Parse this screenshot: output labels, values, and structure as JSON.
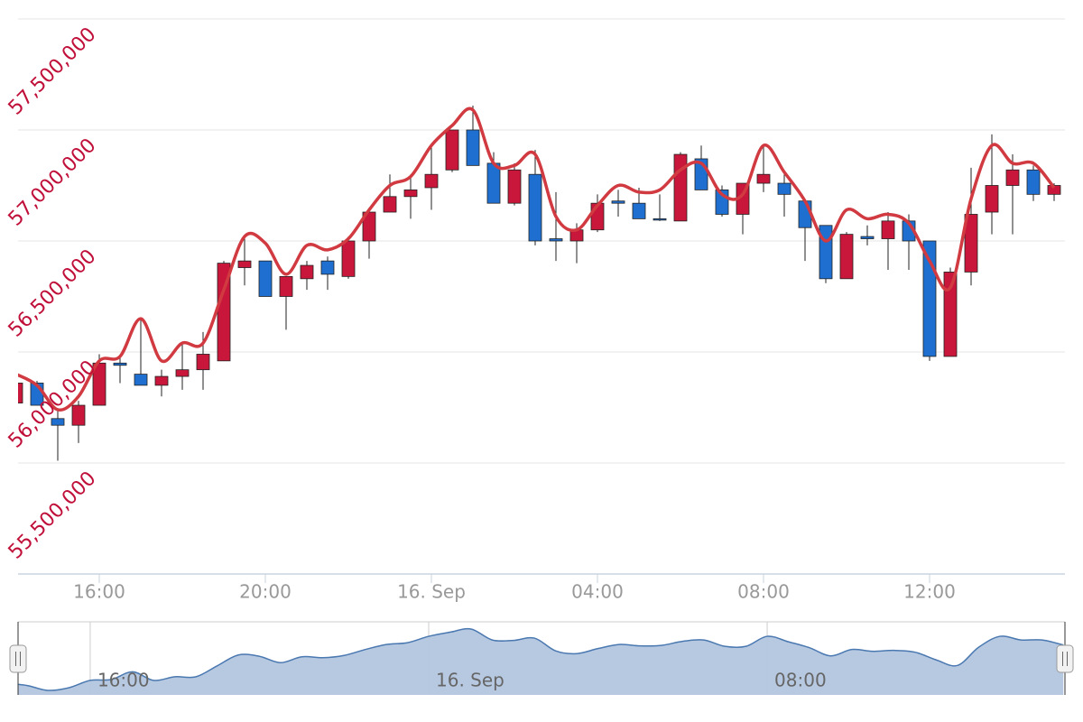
{
  "chart_data": {
    "type": "candlestick",
    "categories": [
      null,
      null,
      null,
      null,
      "16:00",
      null,
      null,
      null,
      null,
      null,
      null,
      null,
      "20:00",
      null,
      null,
      null,
      null,
      null,
      null,
      null,
      "16. Sep",
      null,
      null,
      null,
      null,
      null,
      null,
      null,
      "04:00",
      null,
      null,
      null,
      null,
      null,
      null,
      null,
      "08:00",
      null,
      null,
      null,
      null,
      null,
      null,
      null,
      "12:00",
      null,
      null,
      null,
      null,
      null,
      null
    ],
    "open": [
      55770000,
      55860000,
      55700000,
      55670000,
      55760000,
      55950000,
      55900000,
      55850000,
      55890000,
      55920000,
      55960000,
      56380000,
      56410000,
      56250000,
      56330000,
      56410000,
      56340000,
      56500000,
      56630000,
      56700000,
      56740000,
      56820000,
      57000000,
      56850000,
      56670000,
      56800000,
      56510000,
      56500000,
      56550000,
      56680000,
      56670000,
      56600000,
      56590000,
      56870000,
      56730000,
      56620000,
      56760000,
      56760000,
      56680000,
      56570000,
      56330000,
      56520000,
      56510000,
      56590000,
      56500000,
      55980000,
      56360000,
      56630000,
      56750000,
      56820000,
      56710000
    ],
    "high": [
      55880000,
      55870000,
      55740000,
      55780000,
      55990000,
      55980000,
      56150000,
      55920000,
      56040000,
      56090000,
      56410000,
      56520000,
      56410000,
      56340000,
      56410000,
      56430000,
      56520000,
      56650000,
      56800000,
      56800000,
      56930000,
      57000000,
      57110000,
      56900000,
      56850000,
      56910000,
      56720000,
      56580000,
      56710000,
      56730000,
      56740000,
      56710000,
      56900000,
      56930000,
      56750000,
      56760000,
      56930000,
      56800000,
      56680000,
      56570000,
      56540000,
      56570000,
      56630000,
      56620000,
      56500000,
      56380000,
      56830000,
      56980000,
      56890000,
      56840000,
      56760000
    ],
    "low": [
      55760000,
      55760000,
      55510000,
      55590000,
      55760000,
      55860000,
      55850000,
      55800000,
      55830000,
      55830000,
      55960000,
      56300000,
      56250000,
      56100000,
      56280000,
      56280000,
      56330000,
      56420000,
      56630000,
      56600000,
      56640000,
      56810000,
      56840000,
      56670000,
      56660000,
      56480000,
      56410000,
      56400000,
      56540000,
      56610000,
      56600000,
      56590000,
      56590000,
      56730000,
      56610000,
      56530000,
      56720000,
      56610000,
      56410000,
      56310000,
      56330000,
      56480000,
      56370000,
      56370000,
      55960000,
      55980000,
      56300000,
      56530000,
      56530000,
      56680000,
      56680000
    ],
    "close": [
      55860000,
      55760000,
      55670000,
      55760000,
      55950000,
      55940000,
      55850000,
      55890000,
      55920000,
      55990000,
      56400000,
      56410000,
      56250000,
      56340000,
      56390000,
      56350000,
      56500000,
      56630000,
      56700000,
      56730000,
      56800000,
      57000000,
      56840000,
      56670000,
      56820000,
      56500000,
      56500000,
      56550000,
      56670000,
      56670000,
      56600000,
      56600000,
      56890000,
      56730000,
      56620000,
      56760000,
      56800000,
      56710000,
      56560000,
      56330000,
      56530000,
      56510000,
      56590000,
      56500000,
      55980000,
      56360000,
      56620000,
      56750000,
      56820000,
      56710000,
      56750000
    ],
    "up_color": "#c8173a",
    "down_color": "#1f6fd0",
    "overlay": {
      "type": "spline",
      "color": "#d03a40",
      "values": [
        55900000,
        55850000,
        55740000,
        55800000,
        55960000,
        55980000,
        56150000,
        55960000,
        56040000,
        56040000,
        56280000,
        56520000,
        56490000,
        56350000,
        56480000,
        56460000,
        56510000,
        56640000,
        56750000,
        56790000,
        56930000,
        57020000,
        57090000,
        56850000,
        56840000,
        56890000,
        56610000,
        56550000,
        56660000,
        56750000,
        56720000,
        56730000,
        56820000,
        56850000,
        56710000,
        56710000,
        56930000,
        56810000,
        56680000,
        56500000,
        56640000,
        56600000,
        56620000,
        56580000,
        56410000,
        56290000,
        56690000,
        56930000,
        56850000,
        56850000,
        56740000
      ]
    },
    "ylim": [
      55000000,
      57500000
    ],
    "yticks": [
      {
        "value": 55500000,
        "label": "55,500,000"
      },
      {
        "value": 56000000,
        "label": "56,000,000"
      },
      {
        "value": 56500000,
        "label": "56,500,000"
      },
      {
        "value": 57000000,
        "label": "57,000,000"
      },
      {
        "value": 57500000,
        "label": "57,500,000"
      }
    ],
    "grid": true,
    "navigator": {
      "labels": [
        "16:00",
        "16. Sep",
        "08:00"
      ],
      "fill": "#b3c6df",
      "line": "#4a78b0"
    }
  }
}
